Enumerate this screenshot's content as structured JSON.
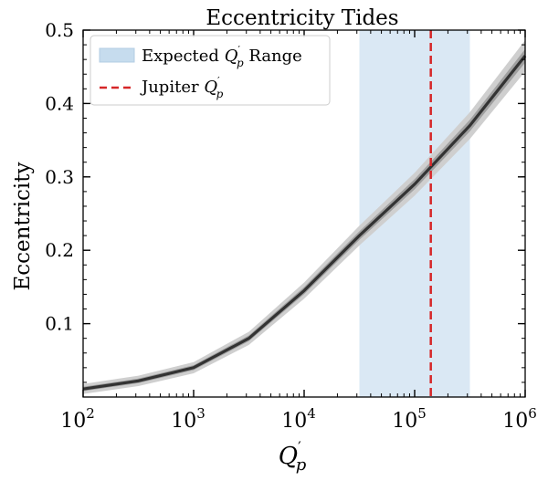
{
  "chart_data": {
    "type": "line",
    "title": "Eccentricity Tides",
    "xlabel": "Q'p",
    "ylabel": "Eccentricity",
    "xscale": "log",
    "xlim": [
      100.0,
      1000000.0
    ],
    "ylim": [
      0.0,
      0.5
    ],
    "x_ticks": [
      {
        "value": 100,
        "base": "10",
        "exp": "2"
      },
      {
        "value": 1000,
        "base": "10",
        "exp": "3"
      },
      {
        "value": 10000,
        "base": "10",
        "exp": "4"
      },
      {
        "value": 100000,
        "base": "10",
        "exp": "5"
      },
      {
        "value": 1000000,
        "base": "10",
        "exp": "6"
      }
    ],
    "y_ticks": [
      {
        "value": 0.1,
        "label": "0.1"
      },
      {
        "value": 0.2,
        "label": "0.2"
      },
      {
        "value": 0.3,
        "label": "0.3"
      },
      {
        "value": 0.4,
        "label": "0.4"
      },
      {
        "value": 0.5,
        "label": "0.5"
      }
    ],
    "series": [
      {
        "name": "Eccentricity",
        "color": "#333333",
        "x": [
          100,
          316,
          1000,
          3162,
          10000,
          31623,
          100000,
          316228,
          1000000
        ],
        "y": [
          0.011,
          0.022,
          0.04,
          0.08,
          0.145,
          0.22,
          0.29,
          0.37,
          0.465
        ],
        "band_inner": 0.007,
        "band_outer": 0.016
      }
    ],
    "expected_range": {
      "label": "Expected Q'p Range",
      "x_min": 31623,
      "x_max": 316228,
      "color": "#c6dcee"
    },
    "jupiter": {
      "label": "Jupiter Q'p",
      "x": 140000,
      "color": "#d62728"
    },
    "legend": {
      "location": "top-left"
    }
  }
}
